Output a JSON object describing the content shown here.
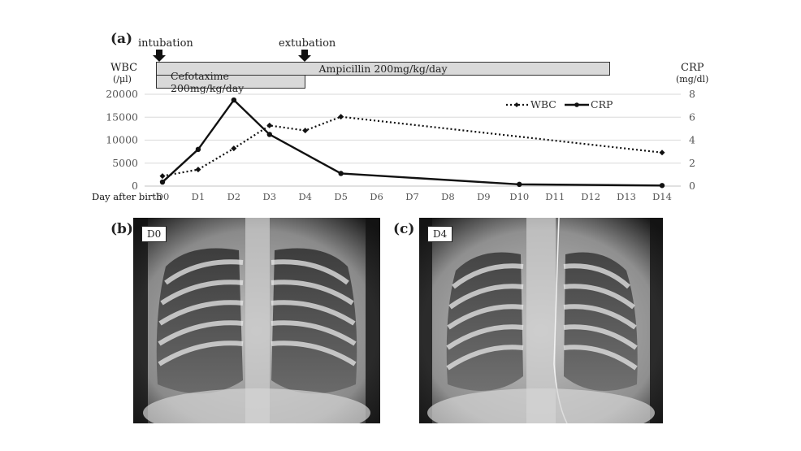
{
  "figure": {
    "panel_a": {
      "label": "(a)",
      "event_intubation": "intubation",
      "event_extubation": "extubation",
      "left_axis_title": "WBC",
      "left_axis_unit": "(/μl)",
      "right_axis_title": "CRP",
      "right_axis_unit": "(mg/dl)",
      "ampicillin_bar": "Ampicillin 200mg/kg/day",
      "cefotaxime_bar": "Cefotaxime 200mg/kg/day",
      "x_axis_label": "Day after birth",
      "legend_wbc": "WBC",
      "legend_crp": "CRP"
    },
    "panel_b": {
      "label": "(b)",
      "tag": "D0"
    },
    "panel_c": {
      "label": "(c)",
      "tag": "D4"
    }
  },
  "chart_data": {
    "type": "line",
    "title": "",
    "xlabel": "Day after birth",
    "categories": [
      "D0",
      "D1",
      "D2",
      "D3",
      "D4",
      "D5",
      "D6",
      "D7",
      "D8",
      "D9",
      "D10",
      "D11",
      "D12",
      "D13",
      "D14"
    ],
    "y_left": {
      "label": "WBC (/μl)",
      "range": [
        0,
        20000
      ],
      "ticks": [
        0,
        5000,
        10000,
        15000,
        20000
      ]
    },
    "y_right": {
      "label": "CRP (mg/dl)",
      "range": [
        0,
        8
      ],
      "ticks": [
        0,
        2,
        4,
        6,
        8
      ]
    },
    "grid": true,
    "legend_position": "top-right",
    "series": [
      {
        "name": "WBC",
        "axis": "left",
        "style": "dotted",
        "points": [
          {
            "x": "D0",
            "y": 2200
          },
          {
            "x": "D1",
            "y": 3600
          },
          {
            "x": "D2",
            "y": 8200
          },
          {
            "x": "D3",
            "y": 13200
          },
          {
            "x": "D4",
            "y": 12100
          },
          {
            "x": "D5",
            "y": 15100
          },
          {
            "x": "D14",
            "y": 7300
          }
        ]
      },
      {
        "name": "CRP",
        "axis": "right",
        "style": "solid",
        "points": [
          {
            "x": "D0",
            "y": 0.35
          },
          {
            "x": "D1",
            "y": 3.2
          },
          {
            "x": "D2",
            "y": 7.5
          },
          {
            "x": "D3",
            "y": 4.5
          },
          {
            "x": "D5",
            "y": 1.1
          },
          {
            "x": "D10",
            "y": 0.15
          },
          {
            "x": "D14",
            "y": 0.05
          }
        ]
      }
    ],
    "annotations": [
      {
        "text": "intubation",
        "at": "D0"
      },
      {
        "text": "extubation",
        "at": "D4"
      },
      {
        "text": "Ampicillin 200mg/kg/day",
        "from": "D0",
        "to": "D12.7"
      },
      {
        "text": "Cefotaxime 200mg/kg/day",
        "from": "D0",
        "to": "D4"
      }
    ]
  }
}
